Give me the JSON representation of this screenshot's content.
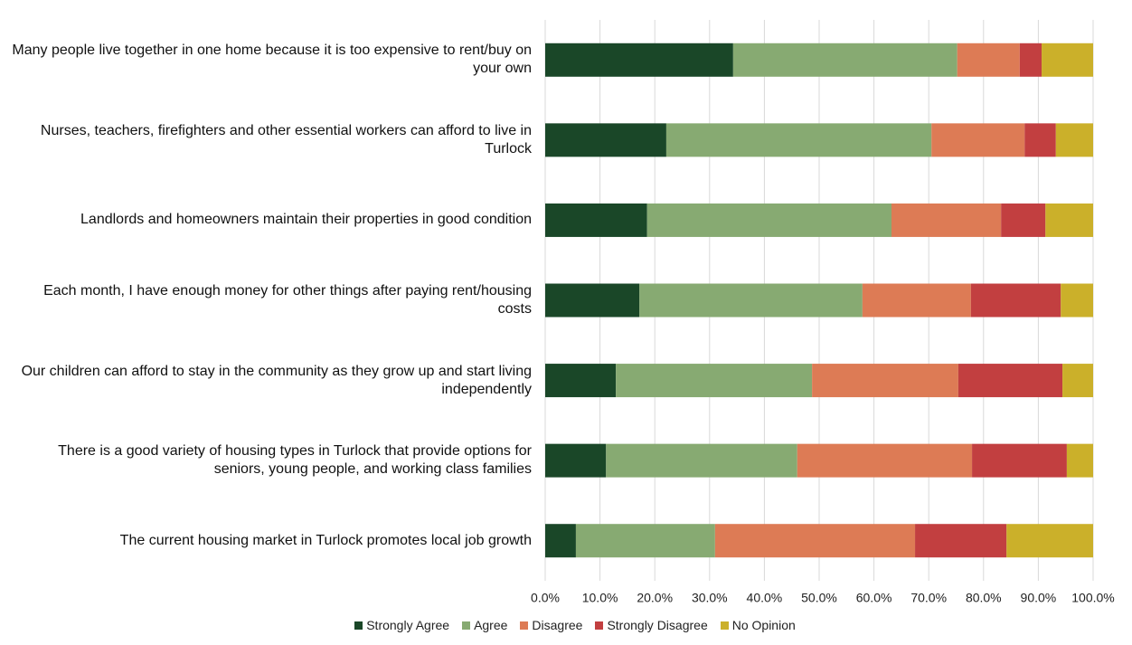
{
  "chart_data": {
    "type": "bar",
    "orientation": "horizontal",
    "stacked": true,
    "categories": [
      "Many people live together in one home because it is too expensive to rent/buy on your own",
      "Nurses, teachers, firefighters and other essential workers can afford to live in Turlock",
      "Landlords and homeowners maintain their properties in good condition",
      "Each month, I have enough money for other things after paying rent/housing costs",
      "Our children can afford to stay in the community as they grow up and start living independently",
      "There is a good variety of housing types in Turlock that provide options for seniors, young people, and working class families",
      "The current housing market in Turlock promotes local job growth"
    ],
    "series": [
      {
        "name": "Strongly Agree",
        "color": "#1a4728",
        "values": [
          34.3,
          22.1,
          18.6,
          17.2,
          12.9,
          11.1,
          5.6
        ]
      },
      {
        "name": "Agree",
        "color": "#87aa72",
        "values": [
          40.9,
          48.4,
          44.6,
          40.7,
          35.8,
          34.9,
          25.4
        ]
      },
      {
        "name": "Disagree",
        "color": "#dd7b55",
        "values": [
          11.4,
          17.0,
          20.0,
          19.8,
          26.7,
          31.9,
          36.5
        ]
      },
      {
        "name": "Strongly Disagree",
        "color": "#c23f40",
        "values": [
          4.0,
          5.7,
          8.1,
          16.4,
          19.0,
          17.3,
          16.7
        ]
      },
      {
        "name": "No Opinion",
        "color": "#cbb02a",
        "values": [
          9.4,
          6.8,
          8.7,
          5.9,
          5.6,
          4.8,
          15.8
        ]
      }
    ],
    "xlim": [
      0,
      100
    ],
    "xticks": [
      {
        "value": 0,
        "label": "0.0%"
      },
      {
        "value": 10,
        "label": "10.0%"
      },
      {
        "value": 20,
        "label": "20.0%"
      },
      {
        "value": 30,
        "label": "30.0%"
      },
      {
        "value": 40,
        "label": "40.0%"
      },
      {
        "value": 50,
        "label": "50.0%"
      },
      {
        "value": 60,
        "label": "60.0%"
      },
      {
        "value": 70,
        "label": "70.0%"
      },
      {
        "value": 80,
        "label": "80.0%"
      },
      {
        "value": 90,
        "label": "90.0%"
      },
      {
        "value": 100,
        "label": "100.0%"
      }
    ],
    "grid": true,
    "legend": "bottom"
  }
}
